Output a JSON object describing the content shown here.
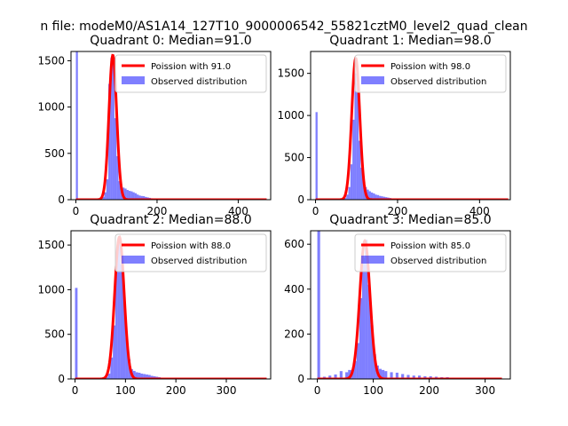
{
  "suptitle": "n file: modeM0/AS1A14_127T10_9000006542_55821cztM0_level2_quad_clean",
  "chart_data": [
    {
      "type": "bar",
      "title": "Quadrant 0: Median=91.0",
      "median": 91.0,
      "xlim": [
        -12,
        480
      ],
      "ylim": [
        0,
        1600
      ],
      "xticks": [
        0,
        200,
        400
      ],
      "yticks": [
        0,
        500,
        1000,
        1500
      ],
      "bins": [
        [
          0,
          1600
        ],
        [
          65,
          30
        ],
        [
          70,
          80
        ],
        [
          75,
          220
        ],
        [
          80,
          1250
        ],
        [
          85,
          1530
        ],
        [
          90,
          1500
        ],
        [
          95,
          880
        ],
        [
          100,
          470
        ],
        [
          105,
          200
        ],
        [
          110,
          140
        ],
        [
          115,
          130
        ],
        [
          120,
          120
        ],
        [
          125,
          105
        ],
        [
          130,
          95
        ],
        [
          135,
          90
        ],
        [
          140,
          80
        ],
        [
          145,
          70
        ],
        [
          150,
          55
        ],
        [
          155,
          45
        ],
        [
          160,
          40
        ],
        [
          165,
          38
        ],
        [
          170,
          30
        ],
        [
          175,
          25
        ],
        [
          180,
          20
        ],
        [
          185,
          15
        ],
        [
          190,
          12
        ],
        [
          195,
          10
        ],
        [
          200,
          8
        ]
      ],
      "bin_width": 5,
      "legend": {
        "line": "Poission with 91.0",
        "hist": "Observed distribution",
        "location": "upper right"
      },
      "line_peak": 1560,
      "line_sigma": 9.5,
      "line_xrange": [
        0,
        470
      ]
    },
    {
      "type": "bar",
      "title": "Quadrant 1: Median=98.0",
      "median": 98.0,
      "xlim": [
        -12,
        475
      ],
      "ylim": [
        0,
        1760
      ],
      "xticks": [
        0,
        200,
        400
      ],
      "yticks": [
        0,
        500,
        1000,
        1500
      ],
      "bins": [
        [
          0,
          1040
        ],
        [
          70,
          20
        ],
        [
          75,
          60
        ],
        [
          80,
          150
        ],
        [
          85,
          420
        ],
        [
          90,
          950
        ],
        [
          95,
          1500
        ],
        [
          100,
          1380
        ],
        [
          105,
          700
        ],
        [
          110,
          380
        ],
        [
          115,
          220
        ],
        [
          120,
          150
        ],
        [
          125,
          120
        ],
        [
          130,
          100
        ],
        [
          135,
          85
        ],
        [
          140,
          75
        ],
        [
          145,
          60
        ],
        [
          150,
          55
        ],
        [
          155,
          45
        ],
        [
          160,
          40
        ],
        [
          165,
          35
        ],
        [
          170,
          30
        ],
        [
          175,
          25
        ],
        [
          180,
          20
        ],
        [
          185,
          15
        ],
        [
          190,
          12
        ],
        [
          200,
          8
        ],
        [
          210,
          5
        ]
      ],
      "bin_width": 5,
      "legend": {
        "line": "Poission with 98.0",
        "hist": "Observed distribution",
        "location": "upper right"
      },
      "line_peak": 1680,
      "line_sigma": 9.8,
      "line_xrange": [
        0,
        470
      ]
    },
    {
      "type": "bar",
      "title": "Quadrant 2: Median=88.0",
      "median": 88.0,
      "xlim": [
        -8,
        388
      ],
      "ylim": [
        0,
        1660
      ],
      "xticks": [
        0,
        100,
        200,
        300
      ],
      "yticks": [
        0,
        500,
        1000,
        1500
      ],
      "bins": [
        [
          0,
          1020
        ],
        [
          60,
          20
        ],
        [
          65,
          60
        ],
        [
          70,
          240
        ],
        [
          75,
          600
        ],
        [
          80,
          1420
        ],
        [
          85,
          1530
        ],
        [
          90,
          1280
        ],
        [
          95,
          940
        ],
        [
          100,
          460
        ],
        [
          105,
          220
        ],
        [
          110,
          110
        ],
        [
          115,
          90
        ],
        [
          120,
          75
        ],
        [
          125,
          70
        ],
        [
          130,
          60
        ],
        [
          135,
          55
        ],
        [
          140,
          50
        ],
        [
          145,
          45
        ],
        [
          150,
          35
        ],
        [
          155,
          30
        ],
        [
          160,
          25
        ],
        [
          165,
          20
        ],
        [
          170,
          15
        ],
        [
          175,
          12
        ],
        [
          180,
          10
        ],
        [
          190,
          6
        ]
      ],
      "bin_width": 5,
      "legend": {
        "line": "Poission with 88.0",
        "hist": "Observed distribution",
        "location": "upper right"
      },
      "line_peak": 1590,
      "line_sigma": 9.4,
      "line_xrange": [
        0,
        380
      ]
    },
    {
      "type": "bar",
      "title": "Quadrant 3: Median=85.0",
      "median": 85.0,
      "xlim": [
        -12,
        345
      ],
      "ylim": [
        0,
        660
      ],
      "xticks": [
        0,
        100,
        200,
        300
      ],
      "yticks": [
        0,
        200,
        400,
        600
      ],
      "bins": [
        [
          0,
          660
        ],
        [
          10,
          10
        ],
        [
          20,
          15
        ],
        [
          30,
          20
        ],
        [
          40,
          35
        ],
        [
          50,
          30
        ],
        [
          55,
          40
        ],
        [
          60,
          40
        ],
        [
          65,
          80
        ],
        [
          70,
          160
        ],
        [
          75,
          360
        ],
        [
          80,
          540
        ],
        [
          85,
          620
        ],
        [
          90,
          420
        ],
        [
          95,
          240
        ],
        [
          100,
          110
        ],
        [
          105,
          60
        ],
        [
          110,
          45
        ],
        [
          115,
          40
        ],
        [
          120,
          35
        ],
        [
          130,
          30
        ],
        [
          140,
          28
        ],
        [
          150,
          22
        ],
        [
          160,
          18
        ],
        [
          170,
          15
        ],
        [
          180,
          15
        ],
        [
          190,
          12
        ],
        [
          200,
          12
        ],
        [
          210,
          10
        ],
        [
          220,
          8
        ],
        [
          230,
          8
        ],
        [
          240,
          6
        ],
        [
          250,
          5
        ],
        [
          260,
          5
        ],
        [
          270,
          4
        ],
        [
          280,
          3
        ],
        [
          290,
          3
        ],
        [
          300,
          2
        ],
        [
          310,
          2
        ],
        [
          320,
          2
        ]
      ],
      "bin_width": 5,
      "legend": {
        "line": "Poission with 85.0",
        "hist": "Observed distribution",
        "location": "upper right"
      },
      "line_peak": 615,
      "line_sigma": 9.2,
      "line_xrange": [
        0,
        330
      ]
    }
  ]
}
